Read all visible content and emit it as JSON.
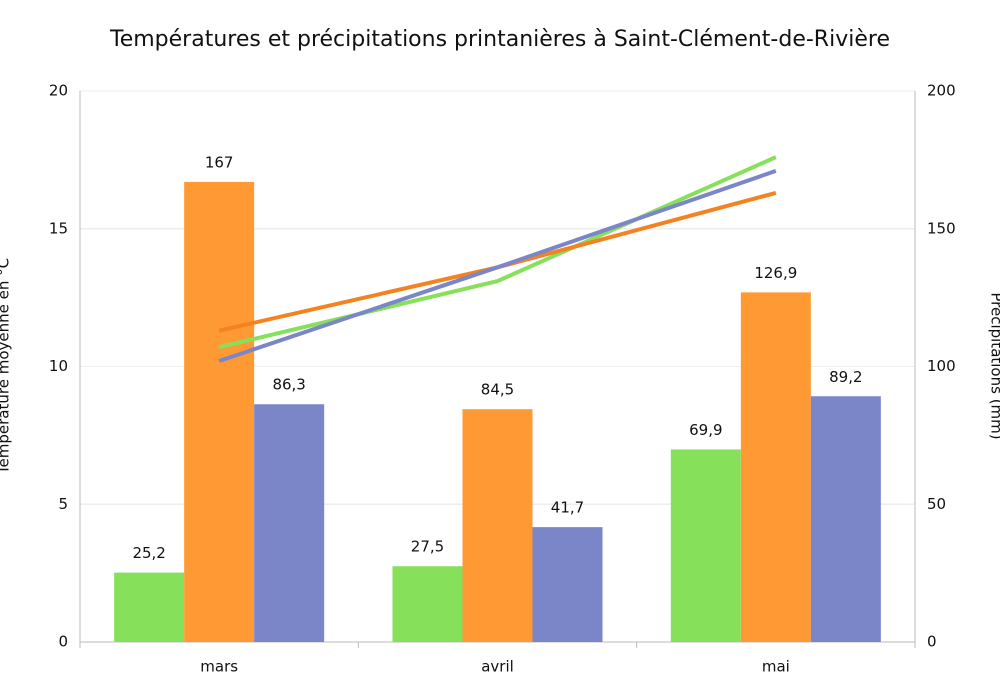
{
  "chart_data": {
    "type": "bar",
    "title": "Températures et précipitations printanières à Saint-Clément-de-Rivière",
    "y_label": "Température moyenne en °C",
    "y2_label": "Précipitations (mm)",
    "categories": [
      "mars",
      "avril",
      "mai"
    ],
    "ylim": [
      0,
      20
    ],
    "yticks": [
      0,
      5,
      10,
      15,
      20
    ],
    "y2lim": [
      0,
      200
    ],
    "y2ticks": [
      0,
      50,
      100,
      150,
      200
    ],
    "grid": true,
    "series": [
      {
        "type": "bar",
        "axis": "y2",
        "color": "#86e05a",
        "values": [
          25.2,
          27.5,
          69.9
        ],
        "value_labels": [
          "25,2",
          "27,5",
          "69,9"
        ]
      },
      {
        "type": "bar",
        "axis": "y2",
        "color": "#ff9933",
        "values": [
          167,
          84.5,
          126.9
        ],
        "value_labels": [
          "167",
          "84,5",
          "126,9"
        ]
      },
      {
        "type": "bar",
        "axis": "y2",
        "color": "#7b86c9",
        "values": [
          86.3,
          41.7,
          89.2
        ],
        "value_labels": [
          "86,3",
          "41,7",
          "89,2"
        ]
      },
      {
        "type": "line",
        "color": "#86e05a",
        "values": [
          10.7,
          13.1,
          17.6
        ]
      },
      {
        "type": "line",
        "color": "#f58220",
        "values": [
          11.3,
          13.6,
          16.3
        ]
      },
      {
        "type": "line",
        "color": "#7b86c9",
        "values": [
          10.2,
          13.6,
          17.1
        ]
      }
    ]
  }
}
